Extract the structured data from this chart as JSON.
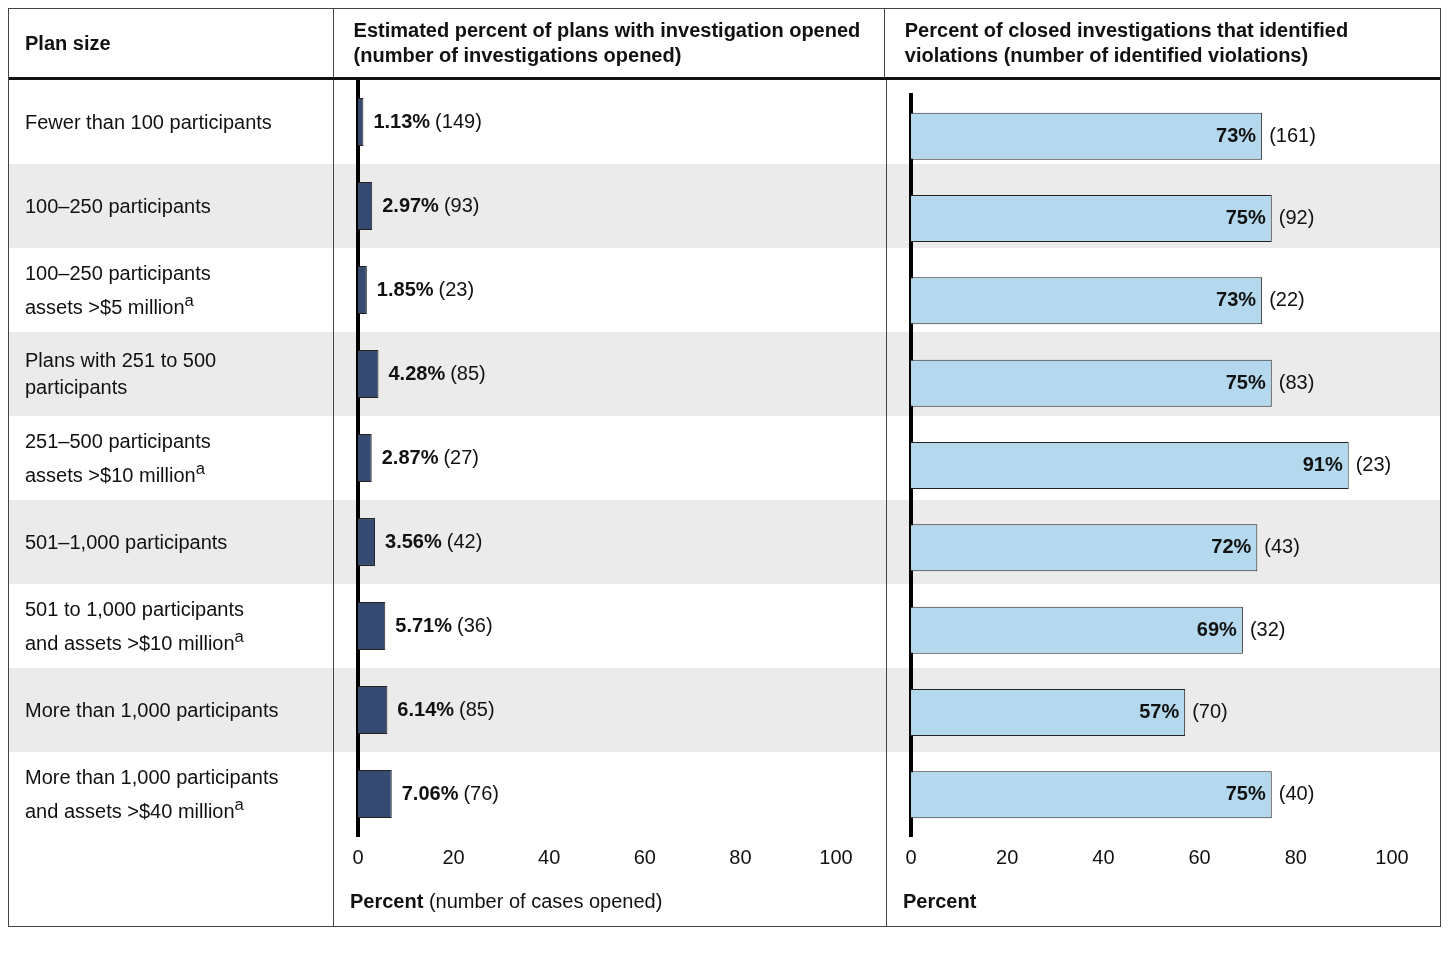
{
  "chart_data": [
    {
      "type": "bar",
      "orientation": "horizontal",
      "title": "Estimated percent of plans with investigation opened (number of investigations opened)",
      "ylabel": "Plan size",
      "xlabel": "Percent (number of cases opened)",
      "categories": [
        "Fewer than 100 participants",
        "100–250 participants",
        "100–250 participants\nassets >$5 million$^{a}$",
        "Plans with 251 to 500\nparticipants",
        "251–500 participants\nassets >$10 million$^{a}$",
        "501–1,000 participants",
        "501 to 1,000 participants\nand assets >$10 million$^{a}$",
        "More than 1,000 participants",
        "More than 1,000 participants\nand assets >$40 million$^{a}$"
      ],
      "values": [
        1.13,
        2.97,
        1.85,
        4.28,
        2.87,
        3.56,
        5.71,
        6.14,
        7.06
      ],
      "value_labels": [
        "1.13% (149)",
        "2.97% (93)",
        "1.85% (23)",
        "4.28% (85)",
        "2.87% (27)",
        "3.56% (42)",
        "5.71% (36)",
        "6.14% (85)",
        "7.06% (76)"
      ],
      "color": "#354a70",
      "xlim": [
        0,
        100
      ],
      "xticks": [
        0,
        20,
        40,
        60,
        80,
        100
      ]
    },
    {
      "type": "bar",
      "orientation": "horizontal",
      "title": "Percent of closed investigations that identified violations (number of identified violations)",
      "xlabel": "Percent",
      "categories": [
        null,
        null,
        null,
        null,
        null,
        null,
        null,
        null,
        null
      ],
      "values": [
        73,
        75,
        73,
        75,
        91,
        72,
        69,
        57,
        75
      ],
      "value_labels": [
        "73% (161)",
        "75% (92)",
        "73% (22)",
        "75% (83)",
        "91% (23)",
        "72% (43)",
        "69% (32)",
        "57% (70)",
        "75% (40)"
      ],
      "color": "#b4d9ee",
      "xlim": [
        0,
        100
      ],
      "xticks": [
        0,
        20,
        40,
        60,
        80,
        100
      ]
    }
  ]
}
